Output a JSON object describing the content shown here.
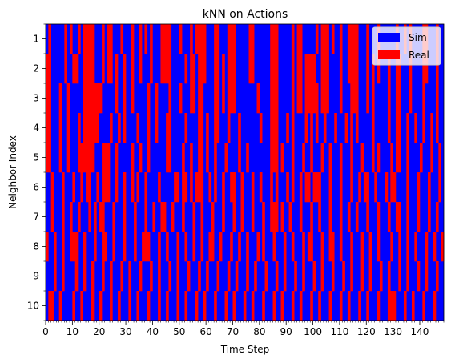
{
  "chart_data": {
    "type": "heatmap",
    "title": "kNN on Actions",
    "xlabel": "Time Step",
    "ylabel": "Neighbor Index",
    "xlim": [
      0,
      149
    ],
    "x_ticks": [
      0,
      10,
      20,
      30,
      40,
      50,
      60,
      70,
      80,
      90,
      100,
      110,
      120,
      130,
      140
    ],
    "x_tick_labels": [
      "0",
      "10",
      "20",
      "30",
      "40",
      "50",
      "60",
      "70",
      "80",
      "90",
      "100",
      "110",
      "120",
      "130",
      "140"
    ],
    "rows": [
      "1",
      "2",
      "3",
      "4",
      "5",
      "6",
      "7",
      "8",
      "9",
      "10"
    ],
    "categories": [
      "Sim",
      "Real"
    ],
    "colors": {
      "Sim": "#0000ff",
      "Real": "#ff0000"
    },
    "legend": [
      {
        "label": "Sim",
        "color": "#0000ff"
      },
      {
        "label": "Real",
        "color": "#ff0000"
      }
    ],
    "legend_position": "top-right",
    "grid": false,
    "real_segments": [
      [
        [
          1,
          2
        ],
        [
          7,
          8
        ],
        [
          9,
          10
        ],
        [
          12,
          13
        ],
        [
          14,
          18
        ],
        [
          21,
          22
        ],
        [
          23,
          25
        ],
        [
          28,
          29
        ],
        [
          32,
          33
        ],
        [
          35,
          36
        ],
        [
          37,
          38
        ],
        [
          39,
          40
        ],
        [
          43,
          47
        ],
        [
          50,
          51
        ],
        [
          54,
          55
        ],
        [
          56,
          60
        ],
        [
          63,
          65
        ],
        [
          68,
          71
        ],
        [
          76,
          78
        ],
        [
          84,
          87
        ],
        [
          92,
          93
        ],
        [
          94,
          96
        ],
        [
          101,
          102
        ],
        [
          103,
          106
        ],
        [
          107,
          108
        ],
        [
          110,
          111
        ],
        [
          113,
          117
        ],
        [
          120,
          121
        ],
        [
          124,
          125
        ],
        [
          131,
          132
        ],
        [
          134,
          135
        ],
        [
          136,
          137
        ],
        [
          141,
          143
        ],
        [
          146,
          147
        ]
      ],
      [
        [
          0,
          2
        ],
        [
          7,
          8
        ],
        [
          10,
          12
        ],
        [
          14,
          18
        ],
        [
          21,
          22
        ],
        [
          23,
          25
        ],
        [
          26,
          27
        ],
        [
          29,
          30
        ],
        [
          32,
          33
        ],
        [
          35,
          36
        ],
        [
          39,
          40
        ],
        [
          43,
          47
        ],
        [
          52,
          53
        ],
        [
          54,
          56
        ],
        [
          57,
          60
        ],
        [
          63,
          65
        ],
        [
          66,
          67
        ],
        [
          68,
          71
        ],
        [
          76,
          78
        ],
        [
          84,
          87
        ],
        [
          92,
          93
        ],
        [
          94,
          96
        ],
        [
          97,
          101
        ],
        [
          103,
          106
        ],
        [
          110,
          111
        ],
        [
          113,
          117
        ],
        [
          120,
          121
        ],
        [
          122,
          123
        ],
        [
          124,
          125
        ],
        [
          128,
          129
        ],
        [
          131,
          133
        ],
        [
          136,
          137
        ],
        [
          141,
          143
        ],
        [
          146,
          147
        ]
      ],
      [
        [
          0,
          2
        ],
        [
          5,
          6
        ],
        [
          8,
          9
        ],
        [
          14,
          21
        ],
        [
          26,
          27
        ],
        [
          29,
          30
        ],
        [
          32,
          33
        ],
        [
          38,
          39
        ],
        [
          41,
          42
        ],
        [
          46,
          47
        ],
        [
          50,
          51
        ],
        [
          54,
          56
        ],
        [
          57,
          59
        ],
        [
          63,
          65
        ],
        [
          66,
          67
        ],
        [
          68,
          71
        ],
        [
          79,
          80
        ],
        [
          84,
          87
        ],
        [
          92,
          93
        ],
        [
          94,
          96
        ],
        [
          97,
          102
        ],
        [
          103,
          106
        ],
        [
          110,
          111
        ],
        [
          114,
          117
        ],
        [
          120,
          121
        ],
        [
          122,
          123
        ],
        [
          128,
          129
        ],
        [
          131,
          133
        ],
        [
          136,
          137
        ],
        [
          141,
          142
        ],
        [
          146,
          147
        ]
      ],
      [
        [
          0,
          2
        ],
        [
          5,
          6
        ],
        [
          8,
          9
        ],
        [
          12,
          13
        ],
        [
          14,
          20
        ],
        [
          24,
          25
        ],
        [
          27,
          28
        ],
        [
          29,
          30
        ],
        [
          34,
          35
        ],
        [
          38,
          39
        ],
        [
          41,
          42
        ],
        [
          45,
          47
        ],
        [
          52,
          53
        ],
        [
          57,
          59
        ],
        [
          60,
          61
        ],
        [
          63,
          65
        ],
        [
          68,
          69
        ],
        [
          72,
          73
        ],
        [
          80,
          81
        ],
        [
          84,
          87
        ],
        [
          90,
          91
        ],
        [
          92,
          93
        ],
        [
          97,
          98
        ],
        [
          99,
          100
        ],
        [
          101,
          102
        ],
        [
          104,
          105
        ],
        [
          108,
          109
        ],
        [
          112,
          113
        ],
        [
          114,
          115
        ],
        [
          116,
          117
        ],
        [
          122,
          123
        ],
        [
          128,
          129
        ],
        [
          131,
          133
        ],
        [
          135,
          136
        ],
        [
          138,
          139
        ],
        [
          141,
          142
        ],
        [
          144,
          145
        ],
        [
          146,
          147
        ]
      ],
      [
        [
          0,
          2
        ],
        [
          5,
          6
        ],
        [
          8,
          9
        ],
        [
          12,
          18
        ],
        [
          21,
          24
        ],
        [
          26,
          27
        ],
        [
          32,
          33
        ],
        [
          35,
          36
        ],
        [
          38,
          39
        ],
        [
          45,
          47
        ],
        [
          51,
          52
        ],
        [
          54,
          55
        ],
        [
          57,
          59
        ],
        [
          60,
          61
        ],
        [
          63,
          64
        ],
        [
          67,
          68
        ],
        [
          72,
          73
        ],
        [
          75,
          76
        ],
        [
          84,
          87
        ],
        [
          88,
          89
        ],
        [
          92,
          93
        ],
        [
          96,
          97
        ],
        [
          99,
          100
        ],
        [
          103,
          104
        ],
        [
          106,
          107
        ],
        [
          110,
          111
        ],
        [
          114,
          115
        ],
        [
          118,
          119
        ],
        [
          122,
          123
        ],
        [
          124,
          125
        ],
        [
          129,
          130
        ],
        [
          131,
          133
        ],
        [
          135,
          136
        ],
        [
          140,
          141
        ],
        [
          144,
          145
        ],
        [
          147,
          148
        ]
      ],
      [
        [
          2,
          3
        ],
        [
          6,
          7
        ],
        [
          10,
          11
        ],
        [
          13,
          14
        ],
        [
          15,
          17
        ],
        [
          19,
          20
        ],
        [
          21,
          24
        ],
        [
          26,
          27
        ],
        [
          29,
          30
        ],
        [
          32,
          33
        ],
        [
          34,
          35
        ],
        [
          37,
          38
        ],
        [
          42,
          43
        ],
        [
          48,
          50
        ],
        [
          51,
          53
        ],
        [
          54,
          55
        ],
        [
          56,
          59
        ],
        [
          61,
          62
        ],
        [
          63,
          64
        ],
        [
          66,
          67
        ],
        [
          69,
          71
        ],
        [
          73,
          74
        ],
        [
          77,
          78
        ],
        [
          80,
          81
        ],
        [
          84,
          85
        ],
        [
          86,
          87
        ],
        [
          90,
          91
        ],
        [
          92,
          93
        ],
        [
          95,
          96
        ],
        [
          97,
          99
        ],
        [
          100,
          103
        ],
        [
          106,
          107
        ],
        [
          110,
          111
        ],
        [
          114,
          115
        ],
        [
          117,
          118
        ],
        [
          119,
          121
        ],
        [
          123,
          124
        ],
        [
          127,
          128
        ],
        [
          129,
          131
        ],
        [
          135,
          136
        ],
        [
          139,
          140
        ],
        [
          143,
          144
        ],
        [
          147,
          148
        ]
      ],
      [
        [
          2,
          3
        ],
        [
          6,
          7
        ],
        [
          9,
          10
        ],
        [
          12,
          13
        ],
        [
          16,
          17
        ],
        [
          18,
          19
        ],
        [
          20,
          22
        ],
        [
          25,
          26
        ],
        [
          29,
          30
        ],
        [
          33,
          34
        ],
        [
          37,
          38
        ],
        [
          40,
          41
        ],
        [
          43,
          45
        ],
        [
          47,
          48
        ],
        [
          51,
          52
        ],
        [
          55,
          56
        ],
        [
          58,
          59
        ],
        [
          62,
          63
        ],
        [
          66,
          67
        ],
        [
          70,
          71
        ],
        [
          73,
          74
        ],
        [
          77,
          78
        ],
        [
          81,
          82
        ],
        [
          84,
          87
        ],
        [
          88,
          89
        ],
        [
          91,
          92
        ],
        [
          95,
          96
        ],
        [
          99,
          100
        ],
        [
          102,
          103
        ],
        [
          106,
          107
        ],
        [
          110,
          111
        ],
        [
          113,
          114
        ],
        [
          116,
          117
        ],
        [
          120,
          121
        ],
        [
          124,
          125
        ],
        [
          128,
          129
        ],
        [
          131,
          133
        ],
        [
          135,
          136
        ],
        [
          139,
          140
        ],
        [
          143,
          144
        ],
        [
          146,
          147
        ]
      ],
      [
        [
          0,
          1
        ],
        [
          3,
          4
        ],
        [
          6,
          7
        ],
        [
          9,
          12
        ],
        [
          14,
          15
        ],
        [
          18,
          19
        ],
        [
          21,
          23
        ],
        [
          25,
          26
        ],
        [
          29,
          30
        ],
        [
          33,
          34
        ],
        [
          36,
          39
        ],
        [
          42,
          43
        ],
        [
          45,
          46
        ],
        [
          49,
          50
        ],
        [
          52,
          53
        ],
        [
          55,
          56
        ],
        [
          58,
          59
        ],
        [
          61,
          63
        ],
        [
          65,
          66
        ],
        [
          69,
          70
        ],
        [
          72,
          73
        ],
        [
          75,
          76
        ],
        [
          79,
          80
        ],
        [
          81,
          82
        ],
        [
          85,
          86
        ],
        [
          89,
          90
        ],
        [
          92,
          93
        ],
        [
          96,
          97
        ],
        [
          98,
          100
        ],
        [
          103,
          104
        ],
        [
          106,
          108
        ],
        [
          110,
          111
        ],
        [
          114,
          115
        ],
        [
          118,
          119
        ],
        [
          121,
          122
        ],
        [
          124,
          125
        ],
        [
          129,
          130
        ],
        [
          132,
          133
        ],
        [
          135,
          136
        ],
        [
          138,
          139
        ],
        [
          142,
          143
        ],
        [
          145,
          146
        ],
        [
          148,
          149
        ]
      ],
      [
        [
          3,
          4
        ],
        [
          6,
          7
        ],
        [
          11,
          12
        ],
        [
          14,
          15
        ],
        [
          17,
          18
        ],
        [
          21,
          22
        ],
        [
          24,
          25
        ],
        [
          28,
          29
        ],
        [
          31,
          32
        ],
        [
          35,
          36
        ],
        [
          39,
          40
        ],
        [
          42,
          43
        ],
        [
          46,
          47
        ],
        [
          49,
          50
        ],
        [
          53,
          54
        ],
        [
          57,
          58
        ],
        [
          60,
          61
        ],
        [
          64,
          65
        ],
        [
          68,
          69
        ],
        [
          71,
          72
        ],
        [
          75,
          76
        ],
        [
          78,
          79
        ],
        [
          82,
          83
        ],
        [
          86,
          87
        ],
        [
          89,
          90
        ],
        [
          93,
          94
        ],
        [
          96,
          97
        ],
        [
          100,
          101
        ],
        [
          103,
          104
        ],
        [
          107,
          108
        ],
        [
          111,
          112
        ],
        [
          114,
          115
        ],
        [
          118,
          119
        ],
        [
          121,
          122
        ],
        [
          125,
          126
        ],
        [
          128,
          129
        ],
        [
          132,
          133
        ],
        [
          135,
          136
        ],
        [
          139,
          140
        ],
        [
          142,
          143
        ],
        [
          146,
          147
        ]
      ],
      [
        [
          1,
          3
        ],
        [
          5,
          6
        ],
        [
          10,
          11
        ],
        [
          13,
          14
        ],
        [
          17,
          18
        ],
        [
          20,
          21
        ],
        [
          24,
          25
        ],
        [
          27,
          28
        ],
        [
          31,
          32
        ],
        [
          34,
          35
        ],
        [
          38,
          39
        ],
        [
          42,
          43
        ],
        [
          45,
          46
        ],
        [
          49,
          50
        ],
        [
          52,
          53
        ],
        [
          56,
          57
        ],
        [
          59,
          60
        ],
        [
          63,
          64
        ],
        [
          67,
          68
        ],
        [
          70,
          71
        ],
        [
          74,
          75
        ],
        [
          77,
          78
        ],
        [
          81,
          82
        ],
        [
          85,
          86
        ],
        [
          88,
          89
        ],
        [
          92,
          93
        ],
        [
          95,
          96
        ],
        [
          99,
          100
        ],
        [
          102,
          103
        ],
        [
          106,
          107
        ],
        [
          110,
          111
        ],
        [
          113,
          114
        ],
        [
          117,
          118
        ],
        [
          120,
          121
        ],
        [
          124,
          125
        ],
        [
          128,
          131
        ],
        [
          134,
          135
        ],
        [
          137,
          138
        ],
        [
          141,
          142
        ],
        [
          145,
          146
        ]
      ]
    ]
  }
}
